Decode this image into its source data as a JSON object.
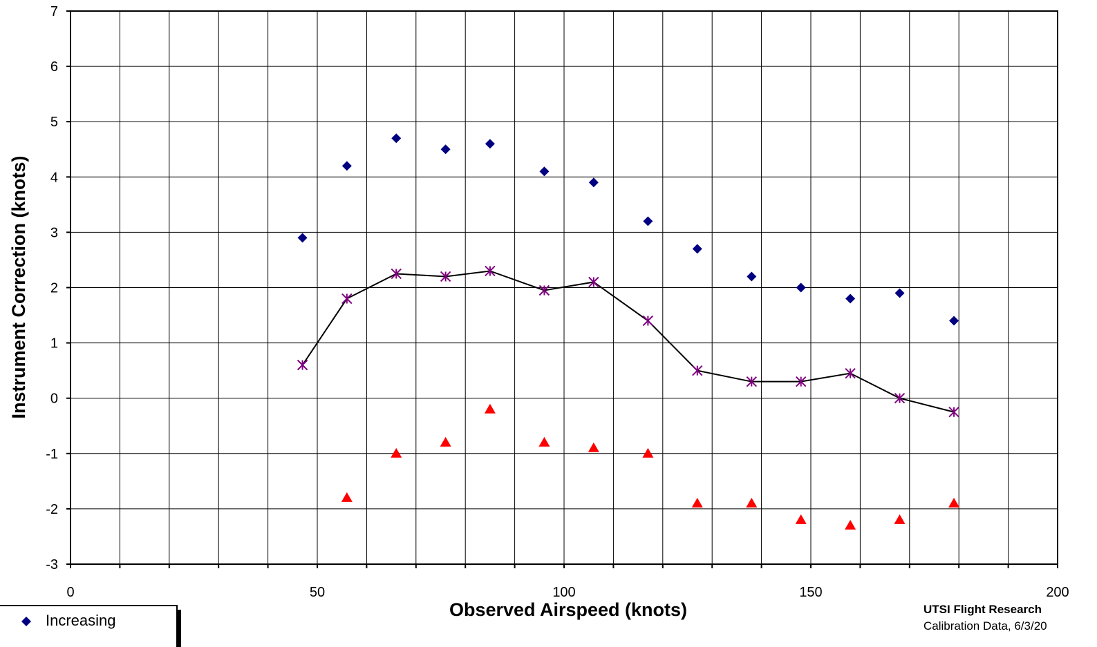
{
  "chart_data": {
    "type": "scatter",
    "xlabel": "Observed Airspeed (knots)",
    "ylabel": "Instrument Correction (knots)",
    "xlim": [
      0,
      200
    ],
    "ylim": [
      -3,
      7
    ],
    "x_ticks": [
      0,
      50,
      100,
      150,
      200
    ],
    "y_ticks": [
      -3,
      -2,
      -1,
      0,
      1,
      2,
      3,
      4,
      5,
      6,
      7
    ],
    "x_grid_step": 10,
    "y_grid_step": 1,
    "grid": true,
    "legend_position": "bottom-left",
    "series": [
      {
        "name": "Increasing",
        "marker": "diamond",
        "color": "#000080",
        "line": false,
        "x": [
          47,
          56,
          66,
          76,
          85,
          96,
          106,
          117,
          127,
          138,
          148,
          158,
          168,
          179
        ],
        "y": [
          2.9,
          4.2,
          4.7,
          4.5,
          4.6,
          4.1,
          3.9,
          3.2,
          2.7,
          2.2,
          2.0,
          1.8,
          1.9,
          1.4
        ]
      },
      {
        "marker": "triangle",
        "color": "#ff0000",
        "line": false,
        "x": [
          56,
          66,
          76,
          85,
          96,
          106,
          117,
          127,
          138,
          148,
          158,
          168,
          179
        ],
        "y": [
          -1.8,
          -1.0,
          -0.8,
          -0.2,
          -0.8,
          -0.9,
          -1.0,
          -1.9,
          -1.9,
          -2.2,
          -2.3,
          -2.2,
          -1.9
        ]
      },
      {
        "marker": "asterisk",
        "color": "#800080",
        "line": true,
        "line_color": "#000000",
        "x": [
          47,
          56,
          66,
          76,
          85,
          96,
          106,
          117,
          127,
          138,
          148,
          158,
          168,
          179
        ],
        "y": [
          0.6,
          1.8,
          2.25,
          2.2,
          2.3,
          1.95,
          2.1,
          1.4,
          0.5,
          0.3,
          0.3,
          0.45,
          0.0,
          -0.25
        ]
      }
    ]
  },
  "footer": {
    "org": "UTSI Flight Research",
    "note": "Calibration Data, 6/3/20"
  }
}
